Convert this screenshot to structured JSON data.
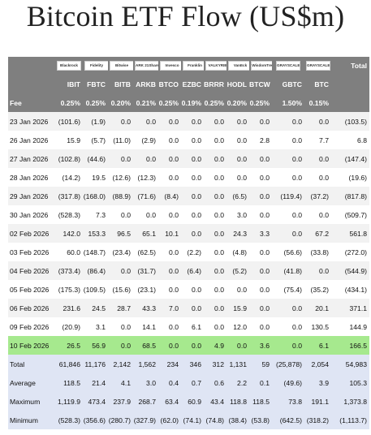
{
  "title": "Bitcoin ETF Flow (US$m)",
  "logos": [
    "Blackrock",
    "Fidelity",
    "Bitwise",
    "ARK 21Shares",
    "Invesco",
    "Franklin",
    "VALKYRIE",
    "VanEck",
    "WisdomTree",
    "GRAYSCALE",
    "GRAYSCALE"
  ],
  "header": {
    "tickers": [
      "",
      "IBIT",
      "FBTC",
      "BITB",
      "ARKB",
      "BTCO",
      "EZBC",
      "BRRR",
      "HODL",
      "BTCW",
      "GBTC",
      "BTC",
      "Total"
    ],
    "fee": [
      "Fee",
      "0.25%",
      "0.25%",
      "0.20%",
      "0.21%",
      "0.25%",
      "0.19%",
      "0.25%",
      "0.20%",
      "0.25%",
      "1.50%",
      "0.15%",
      ""
    ]
  },
  "rows": [
    {
      "date": "23 Jan 2026",
      "values": [
        "(101.6)",
        "(1.9)",
        "0.0",
        "0.0",
        "0.0",
        "0.0",
        "0.0",
        "0.0",
        "0.0",
        "0.0",
        "0.0",
        "(103.5)"
      ]
    },
    {
      "date": "26 Jan 2026",
      "values": [
        "15.9",
        "(5.7)",
        "(11.0)",
        "(2.9)",
        "0.0",
        "0.0",
        "0.0",
        "0.0",
        "2.8",
        "0.0",
        "7.7",
        "6.8"
      ]
    },
    {
      "date": "27 Jan 2026",
      "values": [
        "(102.8)",
        "(44.6)",
        "0.0",
        "0.0",
        "0.0",
        "0.0",
        "0.0",
        "0.0",
        "0.0",
        "0.0",
        "0.0",
        "(147.4)"
      ]
    },
    {
      "date": "28 Jan 2026",
      "values": [
        "(14.2)",
        "19.5",
        "(12.6)",
        "(12.3)",
        "0.0",
        "0.0",
        "0.0",
        "0.0",
        "0.0",
        "0.0",
        "0.0",
        "(19.6)"
      ]
    },
    {
      "date": "29 Jan 2026",
      "values": [
        "(317.8)",
        "(168.0)",
        "(88.9)",
        "(71.6)",
        "(8.4)",
        "0.0",
        "0.0",
        "(6.5)",
        "0.0",
        "(119.4)",
        "(37.2)",
        "(817.8)"
      ]
    },
    {
      "date": "30 Jan 2026",
      "values": [
        "(528.3)",
        "7.3",
        "0.0",
        "0.0",
        "0.0",
        "0.0",
        "0.0",
        "3.0",
        "0.0",
        "0.0",
        "0.0",
        "(509.7)"
      ]
    },
    {
      "date": "02 Feb 2026",
      "values": [
        "142.0",
        "153.3",
        "96.5",
        "65.1",
        "10.1",
        "0.0",
        "0.0",
        "24.3",
        "3.3",
        "0.0",
        "67.2",
        "561.8"
      ]
    },
    {
      "date": "03 Feb 2026",
      "values": [
        "60.0",
        "(148.7)",
        "(23.4)",
        "(62.5)",
        "0.0",
        "(2.2)",
        "0.0",
        "(4.8)",
        "0.0",
        "(56.6)",
        "(33.8)",
        "(272.0)"
      ]
    },
    {
      "date": "04 Feb 2026",
      "values": [
        "(373.4)",
        "(86.4)",
        "0.0",
        "(31.7)",
        "0.0",
        "(6.4)",
        "0.0",
        "(5.2)",
        "0.0",
        "(41.8)",
        "0.0",
        "(544.9)"
      ]
    },
    {
      "date": "05 Feb 2026",
      "values": [
        "(175.3)",
        "(109.5)",
        "(15.6)",
        "(23.1)",
        "0.0",
        "0.0",
        "0.0",
        "0.0",
        "0.0",
        "(75.4)",
        "(35.2)",
        "(434.1)"
      ]
    },
    {
      "date": "06 Feb 2026",
      "values": [
        "231.6",
        "24.5",
        "28.7",
        "43.3",
        "7.0",
        "0.0",
        "0.0",
        "15.9",
        "0.0",
        "0.0",
        "20.1",
        "371.1"
      ]
    },
    {
      "date": "09 Feb 2026",
      "values": [
        "(20.9)",
        "3.1",
        "0.0",
        "14.1",
        "0.0",
        "6.1",
        "0.0",
        "12.0",
        "0.0",
        "0.0",
        "130.5",
        "144.9"
      ]
    },
    {
      "date": "10 Feb 2026",
      "values": [
        "26.5",
        "56.9",
        "0.0",
        "68.5",
        "0.0",
        "0.0",
        "4.9",
        "0.0",
        "3.6",
        "0.0",
        "6.1",
        "166.5"
      ],
      "highlight": true
    }
  ],
  "stats": [
    {
      "label": "Total",
      "values": [
        "61,846",
        "11,176",
        "2,142",
        "1,562",
        "234",
        "346",
        "312",
        "1,131",
        "59",
        "(25,878)",
        "2,054",
        "54,983"
      ]
    },
    {
      "label": "Average",
      "values": [
        "118.5",
        "21.4",
        "4.1",
        "3.0",
        "0.4",
        "0.7",
        "0.6",
        "2.2",
        "0.1",
        "(49.6)",
        "3.9",
        "105.3"
      ]
    },
    {
      "label": "Maximum",
      "values": [
        "1,119.9",
        "473.4",
        "237.9",
        "268.7",
        "63.4",
        "60.9",
        "43.4",
        "118.8",
        "118.5",
        "73.8",
        "191.1",
        "1,373.8"
      ]
    },
    {
      "label": "Minimum",
      "values": [
        "(528.3)",
        "(356.6)",
        "(280.7)",
        "(327.9)",
        "(62.0)",
        "(74.1)",
        "(74.8)",
        "(38.4)",
        "(53.8)",
        "(642.5)",
        "(318.2)",
        "(1,113.7)"
      ]
    }
  ],
  "colors": {
    "header_bg": "#7f7f7f",
    "negative": "#c0392b",
    "highlight_row": "#a6e98e",
    "stats_bg": "#dfe5f4",
    "stripe": "#f2f2f2"
  }
}
